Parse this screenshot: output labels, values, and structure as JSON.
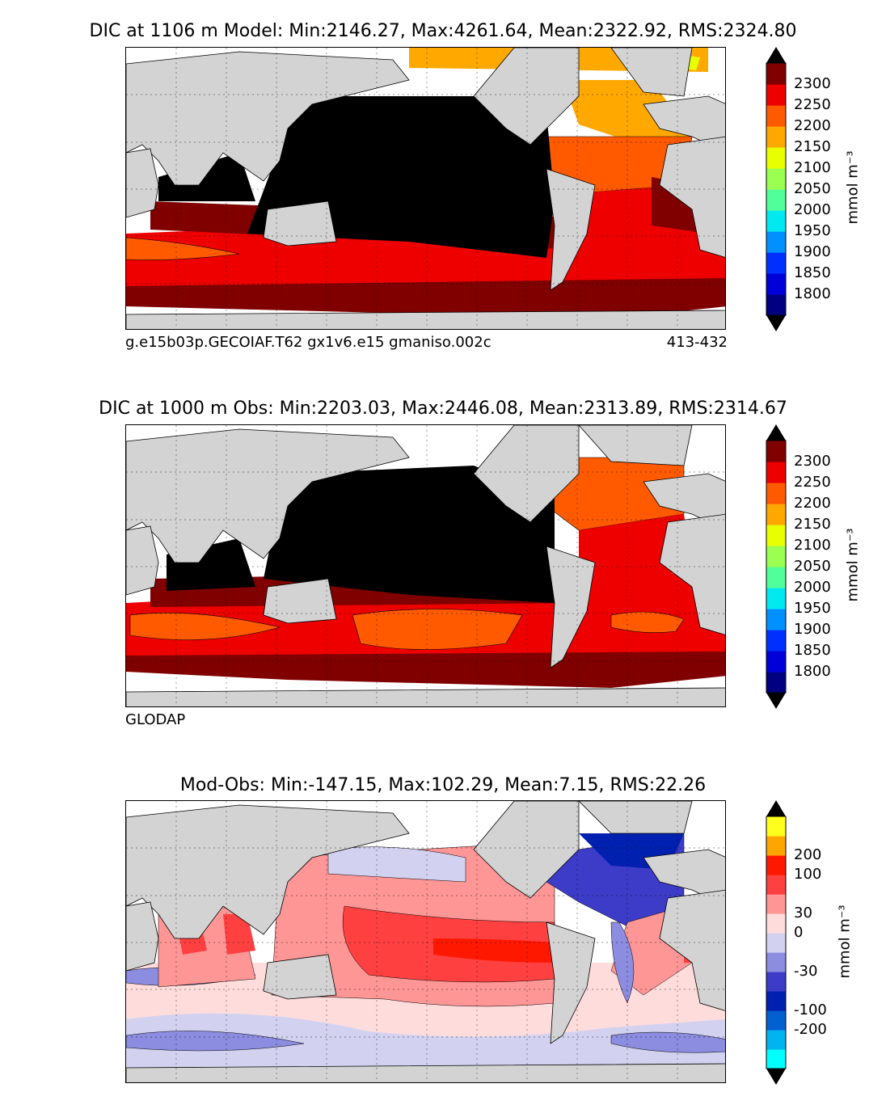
{
  "panels": [
    {
      "title": "DIC at 1106 m Model: Min:2146.27, Max:4261.64, Mean:2322.92, RMS:2324.80",
      "caption_left": "g.e15b03p.GECOIAF.T62 gx1v6.e15 gmaniso.002c",
      "caption_right": "413-432",
      "colorbar": {
        "colors": [
          "#000080",
          "#0000d8",
          "#0030ff",
          "#0090ff",
          "#00e8f0",
          "#50ff9a",
          "#9aff50",
          "#e8ff00",
          "#ffa800",
          "#ff5a00",
          "#ee0000",
          "#800000"
        ],
        "under_color": "#000000",
        "over_color": "#000000",
        "ticks": [
          "1800",
          "1850",
          "1900",
          "1950",
          "2000",
          "2050",
          "2100",
          "2150",
          "2200",
          "2250",
          "2300"
        ],
        "unit": "mmol m⁻³"
      }
    },
    {
      "title": "DIC at 1000 m Obs: Min:2203.03, Max:2446.08, Mean:2313.89, RMS:2314.67",
      "caption_left": "GLODAP",
      "caption_right": "",
      "colorbar": {
        "colors": [
          "#000080",
          "#0000d8",
          "#0030ff",
          "#0090ff",
          "#00e8f0",
          "#50ff9a",
          "#9aff50",
          "#e8ff00",
          "#ffa800",
          "#ff5a00",
          "#ee0000",
          "#800000"
        ],
        "under_color": "#000000",
        "over_color": "#000000",
        "ticks": [
          "1800",
          "1850",
          "1900",
          "1950",
          "2000",
          "2050",
          "2100",
          "2150",
          "2200",
          "2250",
          "2300"
        ],
        "unit": "mmol m⁻³"
      }
    },
    {
      "title": "Mod-Obs: Min:-147.15, Max:102.29, Mean:7.15, RMS:22.26",
      "caption_left": "",
      "caption_right": "",
      "colorbar": {
        "colors": [
          "#00ffff",
          "#00b4f0",
          "#0060d0",
          "#0020b0",
          "#3c3cc8",
          "#8c8ce0",
          "#d2d2f0",
          "#ffdcdc",
          "#ff9696",
          "#ff4040",
          "#ff1800",
          "#ffa500",
          "#ffff1e"
        ],
        "under_color": "#000000",
        "over_color": "#000000",
        "ticks": [
          "-200",
          "-100",
          "-30",
          "0",
          "30",
          "100",
          "200"
        ],
        "unit": "mmol m⁻³"
      }
    }
  ]
}
